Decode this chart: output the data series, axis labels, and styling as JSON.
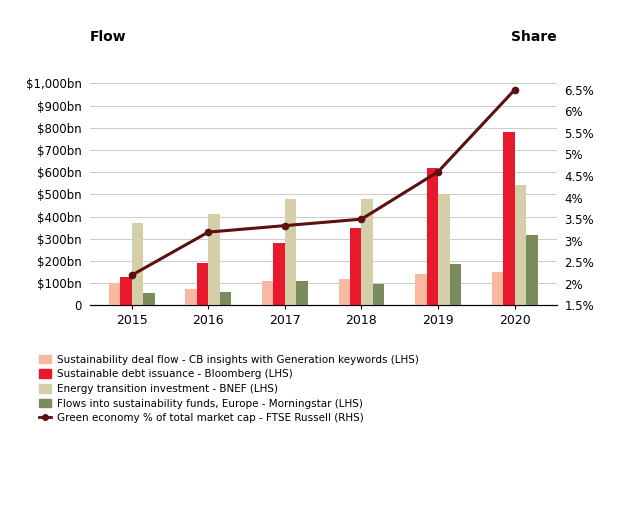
{
  "years": [
    2015,
    2016,
    2017,
    2018,
    2019,
    2020
  ],
  "sustainability_deal_flow": [
    100,
    75,
    110,
    120,
    140,
    150
  ],
  "sustainable_debt_issuance": [
    130,
    190,
    280,
    350,
    620,
    780
  ],
  "energy_transition_investment": [
    370,
    410,
    480,
    480,
    500,
    540
  ],
  "flows_sustainability_funds": [
    55,
    60,
    110,
    95,
    185,
    315
  ],
  "green_economy_pct": [
    2.2,
    3.2,
    3.35,
    3.5,
    4.6,
    6.5
  ],
  "bar_colors": {
    "deal_flow": "#f9b8a0",
    "debt_issuance": "#e8192c",
    "energy_transition": "#d4cfa8",
    "flows_funds": "#7a8c5e"
  },
  "line_color": "#5c1010",
  "lhs_ylim": [
    0,
    1100
  ],
  "rhs_ylim": [
    1.5,
    7.166
  ],
  "lhs_yticks": [
    0,
    100,
    200,
    300,
    400,
    500,
    600,
    700,
    800,
    900,
    1000
  ],
  "lhs_ytick_labels": [
    "0",
    "$100bn",
    "$200bn",
    "$300bn",
    "$400bn",
    "$500bn",
    "$600bn",
    "$700bn",
    "$800bn",
    "$900bn",
    "$1,000bn"
  ],
  "rhs_yticks": [
    1.5,
    2.0,
    2.5,
    3.0,
    3.5,
    4.0,
    4.5,
    5.0,
    5.5,
    6.0,
    6.5
  ],
  "rhs_ytick_labels": [
    "1.5%",
    "2%",
    "2.5%",
    "3%",
    "3.5%",
    "4%",
    "4.5%",
    "5%",
    "5.5%",
    "6%",
    "6.5%"
  ],
  "left_label": "Flow",
  "right_label": "Share",
  "legend_labels": [
    "Sustainability deal flow - CB insights with Generation keywords (LHS)",
    "Sustainable debt issuance - Bloomberg (LHS)",
    "Energy transition investment - BNEF (LHS)",
    "Flows into sustainability funds, Europe - Morningstar (LHS)",
    "Green economy % of total market cap - FTSE Russell (RHS)"
  ],
  "bar_width": 0.15,
  "background_color": "#ffffff",
  "grid_color": "#cccccc"
}
